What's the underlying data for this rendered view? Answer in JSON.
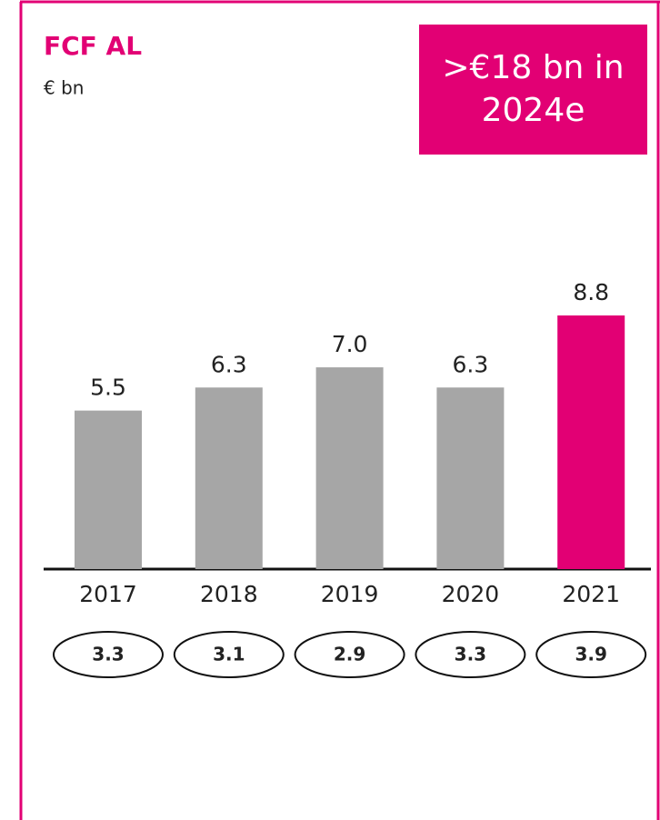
{
  "chart_data": {
    "type": "bar",
    "title": "FCF AL",
    "subtitle": "€ bn",
    "annotation": ">€18 bn in 2024e",
    "categories": [
      "2017",
      "2018",
      "2019",
      "2020",
      "2021"
    ],
    "values": [
      5.5,
      6.3,
      7.0,
      6.3,
      8.8
    ],
    "value_labels": [
      "5.5",
      "6.3",
      "7.0",
      "6.3",
      "8.8"
    ],
    "colors": [
      "#a6a6a6",
      "#a6a6a6",
      "#a6a6a6",
      "#a6a6a6",
      "#e20074"
    ],
    "footer_values": [
      3.3,
      3.1,
      2.9,
      3.3,
      3.9
    ]
  }
}
